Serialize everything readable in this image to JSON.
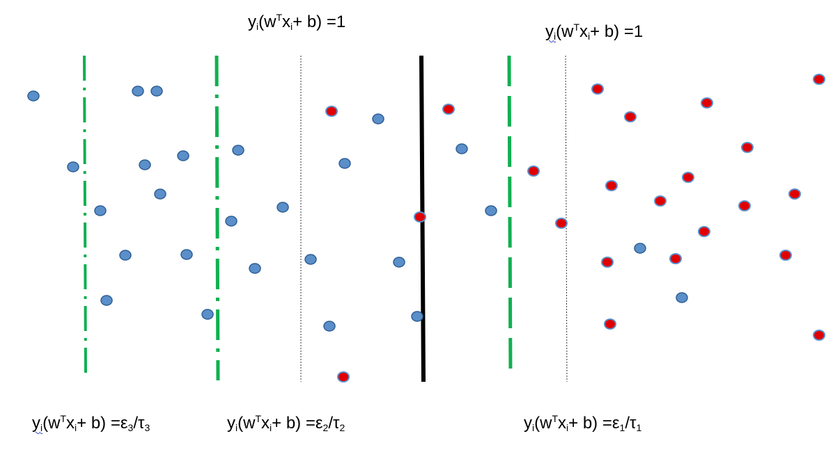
{
  "colors": {
    "blue_point": "#5b8fc9",
    "blue_point_stroke": "#2f5f96",
    "red_point": "#e00000",
    "red_point_stroke": "#5b8fc9",
    "green_boundary": "#10b050",
    "hyperplane": "#000000",
    "dotted_line": "#333333"
  },
  "equations": {
    "top_left": {
      "pre": "y",
      "s1": "i",
      "mid1": "(w",
      "s2": "T",
      "mid2": "x",
      "s3": "i",
      "post": "+ b) =1"
    },
    "top_right": {
      "pre": "y",
      "s1": "i",
      "mid1": "(w",
      "s2": "T",
      "mid2": "x",
      "s3": "i",
      "post": "+ b) =1"
    },
    "bottom_1": {
      "pre": "y",
      "s1": "i",
      "mid1": "(w",
      "s2": "T",
      "mid2": "x",
      "s3": "i",
      "mid3": "+ b) =ε",
      "s4": "3",
      "mid4": "/τ",
      "s5": "3"
    },
    "bottom_2": {
      "pre": "y",
      "s1": "i",
      "mid1": "(w",
      "s2": "T",
      "mid2": "x",
      "s3": "i",
      "mid3": "+ b) =ε",
      "s4": "2",
      "mid4": "/τ",
      "s5": "2"
    },
    "bottom_3": {
      "pre": "y",
      "s1": "i",
      "mid1": "(w",
      "s2": "T",
      "mid2": "x",
      "s3": "i",
      "mid3": "+ b) =ε",
      "s4": "1",
      "mid4": "/τ",
      "s5": "1"
    }
  },
  "legend_shapes": [
    "blue-point",
    "red-point"
  ]
}
